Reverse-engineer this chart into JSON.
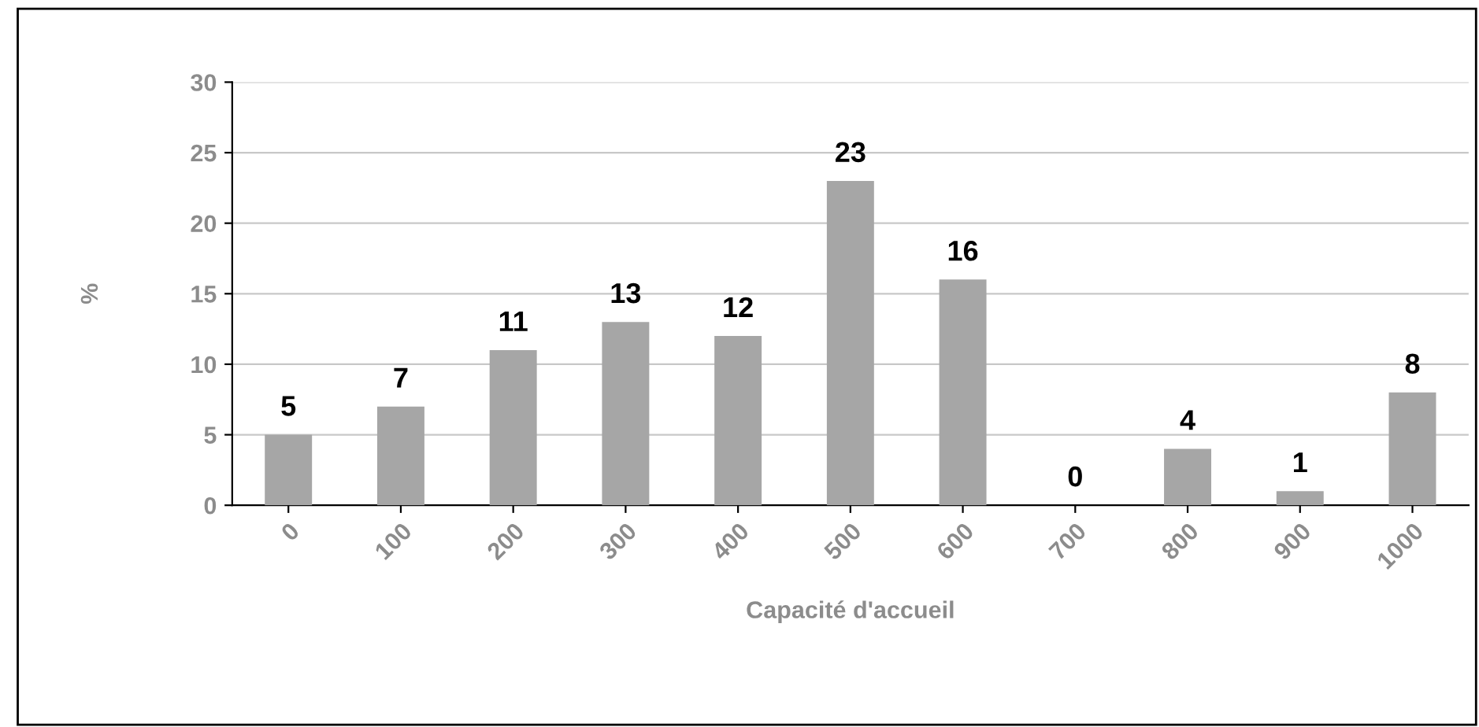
{
  "chart_data": {
    "type": "bar",
    "xlabel": "Capacité d'accueil",
    "ylabel": "%",
    "categories": [
      "0",
      "100",
      "200",
      "300",
      "400",
      "500",
      "600",
      "700",
      "800",
      "900",
      "1000"
    ],
    "values": [
      5,
      7,
      11,
      13,
      12,
      23,
      16,
      0,
      4,
      1,
      8
    ],
    "color": "#a6a6a6",
    "ylim": [
      0,
      30
    ],
    "yticks": [
      0,
      5,
      10,
      15,
      20,
      25,
      30
    ],
    "grid": "y",
    "data_labels": true,
    "legend": false
  }
}
